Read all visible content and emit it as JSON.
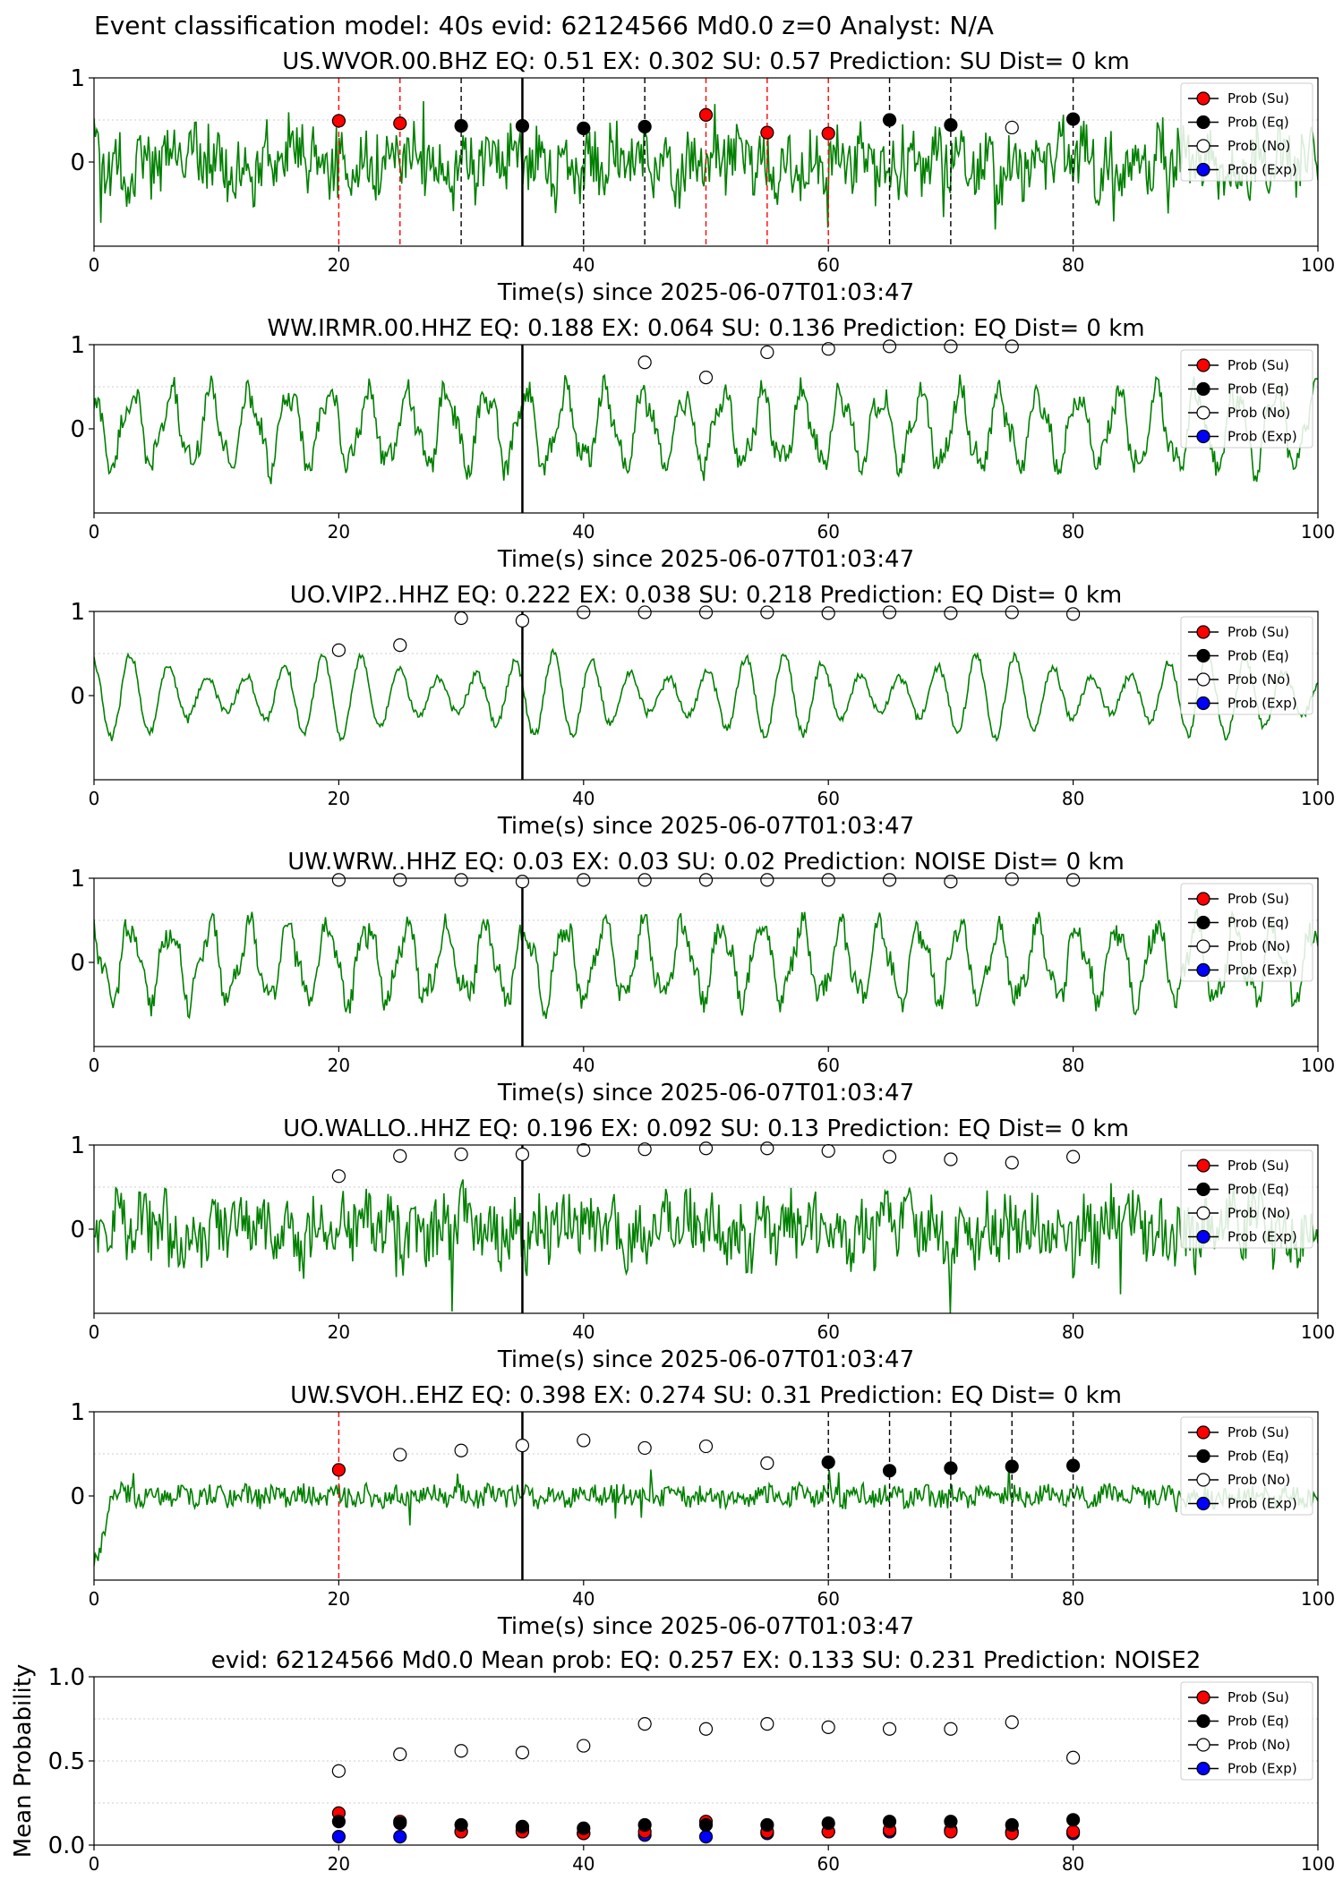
{
  "figure_title": "Event classification model: 40s evid: 62124566 Md0.0 z=0 Analyst: N/A",
  "legend_labels": [
    "Prob (Su)",
    "Prob (Eq)",
    "Prob (No)",
    "Prob (Exp)"
  ],
  "colors": {
    "waveform": "#008000",
    "su": "#ff0000",
    "eq": "#000000",
    "no": "#ffffff",
    "exp": "#0000ff",
    "marker_edge": "#000000"
  },
  "chart_data": [
    {
      "type": "line",
      "title": "US.WVOR.00.BHZ   EQ: 0.51  EX: 0.302  SU: 0.57   Prediction: SU    Dist= 0 km",
      "xlabel": "Time(s) since 2025-06-07T01:03:47",
      "xlim": [
        0,
        100
      ],
      "ylim": [
        -1,
        1
      ],
      "xticks": [
        "0",
        "20",
        "40",
        "60",
        "80",
        "100"
      ],
      "yticks": [
        "0",
        "1"
      ],
      "waveform_style": "noisy",
      "onset_time": 35,
      "dashed_lines": [
        {
          "x": 20,
          "color": "su"
        },
        {
          "x": 25,
          "color": "su"
        },
        {
          "x": 30,
          "color": "eq"
        },
        {
          "x": 40,
          "color": "eq"
        },
        {
          "x": 45,
          "color": "eq"
        },
        {
          "x": 50,
          "color": "su"
        },
        {
          "x": 55,
          "color": "su"
        },
        {
          "x": 60,
          "color": "su"
        },
        {
          "x": 65,
          "color": "eq"
        },
        {
          "x": 70,
          "color": "eq"
        },
        {
          "x": 80,
          "color": "eq"
        }
      ],
      "points": [
        {
          "x": 20,
          "y": 0.49,
          "cls": "su"
        },
        {
          "x": 25,
          "y": 0.46,
          "cls": "su"
        },
        {
          "x": 30,
          "y": 0.43,
          "cls": "eq"
        },
        {
          "x": 35,
          "y": 0.43,
          "cls": "eq"
        },
        {
          "x": 40,
          "y": 0.4,
          "cls": "eq"
        },
        {
          "x": 45,
          "y": 0.42,
          "cls": "eq"
        },
        {
          "x": 50,
          "y": 0.56,
          "cls": "su"
        },
        {
          "x": 55,
          "y": 0.35,
          "cls": "su"
        },
        {
          "x": 60,
          "y": 0.34,
          "cls": "su"
        },
        {
          "x": 65,
          "y": 0.5,
          "cls": "eq"
        },
        {
          "x": 70,
          "y": 0.44,
          "cls": "eq"
        },
        {
          "x": 75,
          "y": 0.41,
          "cls": "no"
        },
        {
          "x": 80,
          "y": 0.51,
          "cls": "eq"
        }
      ]
    },
    {
      "type": "line",
      "title": "WW.IRMR.00.HHZ   EQ: 0.188  EX: 0.064  SU: 0.136   Prediction: EQ    Dist= 0 km",
      "xlabel": "Time(s) since 2025-06-07T01:03:47",
      "xlim": [
        0,
        100
      ],
      "ylim": [
        -1,
        1
      ],
      "xticks": [
        "0",
        "20",
        "40",
        "60",
        "80",
        "100"
      ],
      "yticks": [
        "0",
        "1"
      ],
      "waveform_style": "wave",
      "onset_time": 35,
      "dashed_lines": [],
      "points": [
        {
          "x": 45,
          "y": 0.79,
          "cls": "no"
        },
        {
          "x": 50,
          "y": 0.61,
          "cls": "no"
        },
        {
          "x": 55,
          "y": 0.91,
          "cls": "no"
        },
        {
          "x": 60,
          "y": 0.95,
          "cls": "no"
        },
        {
          "x": 65,
          "y": 0.98,
          "cls": "no"
        },
        {
          "x": 70,
          "y": 0.98,
          "cls": "no"
        },
        {
          "x": 75,
          "y": 0.98,
          "cls": "no"
        }
      ]
    },
    {
      "type": "line",
      "title": "UO.VIP2..HHZ   EQ: 0.222  EX: 0.038  SU: 0.218   Prediction: EQ    Dist= 0 km",
      "xlabel": "Time(s) since 2025-06-07T01:03:47",
      "xlim": [
        0,
        100
      ],
      "ylim": [
        -1,
        1
      ],
      "xticks": [
        "0",
        "20",
        "40",
        "60",
        "80",
        "100"
      ],
      "yticks": [
        "0",
        "1"
      ],
      "waveform_style": "smooth",
      "onset_time": 35,
      "dashed_lines": [],
      "points": [
        {
          "x": 20,
          "y": 0.54,
          "cls": "no"
        },
        {
          "x": 25,
          "y": 0.6,
          "cls": "no"
        },
        {
          "x": 30,
          "y": 0.92,
          "cls": "no"
        },
        {
          "x": 35,
          "y": 0.89,
          "cls": "no"
        },
        {
          "x": 40,
          "y": 0.99,
          "cls": "no"
        },
        {
          "x": 45,
          "y": 0.99,
          "cls": "no"
        },
        {
          "x": 50,
          "y": 0.99,
          "cls": "no"
        },
        {
          "x": 55,
          "y": 0.99,
          "cls": "no"
        },
        {
          "x": 60,
          "y": 0.98,
          "cls": "no"
        },
        {
          "x": 65,
          "y": 0.99,
          "cls": "no"
        },
        {
          "x": 70,
          "y": 0.98,
          "cls": "no"
        },
        {
          "x": 75,
          "y": 0.99,
          "cls": "no"
        },
        {
          "x": 80,
          "y": 0.97,
          "cls": "no"
        }
      ]
    },
    {
      "type": "line",
      "title": "UW.WRW..HHZ   EQ: 0.03  EX: 0.03  SU: 0.02   Prediction: NOISE    Dist= 0 km",
      "xlabel": "Time(s) since 2025-06-07T01:03:47",
      "xlim": [
        0,
        100
      ],
      "ylim": [
        -1,
        1
      ],
      "xticks": [
        "0",
        "20",
        "40",
        "60",
        "80",
        "100"
      ],
      "yticks": [
        "0",
        "1"
      ],
      "waveform_style": "wave",
      "onset_time": 35,
      "dashed_lines": [],
      "points": [
        {
          "x": 20,
          "y": 0.98,
          "cls": "no"
        },
        {
          "x": 25,
          "y": 0.98,
          "cls": "no"
        },
        {
          "x": 30,
          "y": 0.98,
          "cls": "no"
        },
        {
          "x": 35,
          "y": 0.96,
          "cls": "no"
        },
        {
          "x": 40,
          "y": 0.98,
          "cls": "no"
        },
        {
          "x": 45,
          "y": 0.98,
          "cls": "no"
        },
        {
          "x": 50,
          "y": 0.98,
          "cls": "no"
        },
        {
          "x": 55,
          "y": 0.98,
          "cls": "no"
        },
        {
          "x": 60,
          "y": 0.98,
          "cls": "no"
        },
        {
          "x": 65,
          "y": 0.98,
          "cls": "no"
        },
        {
          "x": 70,
          "y": 0.96,
          "cls": "no"
        },
        {
          "x": 75,
          "y": 0.99,
          "cls": "no"
        },
        {
          "x": 80,
          "y": 0.98,
          "cls": "no"
        }
      ]
    },
    {
      "type": "line",
      "title": "UO.WALLO..HHZ   EQ: 0.196  EX: 0.092  SU: 0.13   Prediction: EQ    Dist= 0 km",
      "xlabel": "Time(s) since 2025-06-07T01:03:47",
      "xlim": [
        0,
        100
      ],
      "ylim": [
        -1,
        1
      ],
      "xticks": [
        "0",
        "20",
        "40",
        "60",
        "80",
        "100"
      ],
      "yticks": [
        "0",
        "1"
      ],
      "waveform_style": "noisy",
      "onset_time": 35,
      "dashed_lines": [],
      "points": [
        {
          "x": 20,
          "y": 0.63,
          "cls": "no"
        },
        {
          "x": 25,
          "y": 0.87,
          "cls": "no"
        },
        {
          "x": 30,
          "y": 0.89,
          "cls": "no"
        },
        {
          "x": 35,
          "y": 0.89,
          "cls": "no"
        },
        {
          "x": 40,
          "y": 0.94,
          "cls": "no"
        },
        {
          "x": 45,
          "y": 0.95,
          "cls": "no"
        },
        {
          "x": 50,
          "y": 0.96,
          "cls": "no"
        },
        {
          "x": 55,
          "y": 0.96,
          "cls": "no"
        },
        {
          "x": 60,
          "y": 0.93,
          "cls": "no"
        },
        {
          "x": 65,
          "y": 0.86,
          "cls": "no"
        },
        {
          "x": 70,
          "y": 0.83,
          "cls": "no"
        },
        {
          "x": 75,
          "y": 0.79,
          "cls": "no"
        },
        {
          "x": 80,
          "y": 0.86,
          "cls": "no"
        }
      ]
    },
    {
      "type": "line",
      "title": "UW.SVOH..EHZ   EQ: 0.398  EX: 0.274  SU: 0.31   Prediction: EQ    Dist= 0 km",
      "xlabel": "Time(s) since 2025-06-07T01:03:47",
      "xlim": [
        0,
        100
      ],
      "ylim": [
        -1,
        1
      ],
      "xticks": [
        "0",
        "20",
        "40",
        "60",
        "80",
        "100"
      ],
      "yticks": [
        "0",
        "1"
      ],
      "waveform_style": "quiet",
      "onset_time": 35,
      "dashed_lines": [
        {
          "x": 20,
          "color": "su"
        },
        {
          "x": 60,
          "color": "eq"
        },
        {
          "x": 65,
          "color": "eq"
        },
        {
          "x": 70,
          "color": "eq"
        },
        {
          "x": 75,
          "color": "eq"
        },
        {
          "x": 80,
          "color": "eq"
        }
      ],
      "points": [
        {
          "x": 20,
          "y": 0.31,
          "cls": "su"
        },
        {
          "x": 25,
          "y": 0.49,
          "cls": "no"
        },
        {
          "x": 30,
          "y": 0.54,
          "cls": "no"
        },
        {
          "x": 35,
          "y": 0.6,
          "cls": "no"
        },
        {
          "x": 40,
          "y": 0.66,
          "cls": "no"
        },
        {
          "x": 45,
          "y": 0.57,
          "cls": "no"
        },
        {
          "x": 50,
          "y": 0.59,
          "cls": "no"
        },
        {
          "x": 55,
          "y": 0.39,
          "cls": "no"
        },
        {
          "x": 60,
          "y": 0.4,
          "cls": "eq"
        },
        {
          "x": 65,
          "y": 0.3,
          "cls": "eq"
        },
        {
          "x": 70,
          "y": 0.33,
          "cls": "eq"
        },
        {
          "x": 75,
          "y": 0.35,
          "cls": "eq"
        },
        {
          "x": 80,
          "y": 0.36,
          "cls": "eq"
        }
      ]
    },
    {
      "type": "scatter",
      "title": "evid: 62124566  Md0.0   Mean prob:   EQ: 0.257  EX: 0.133  SU: 0.231   Prediction: NOISE2",
      "xlabel": "",
      "ylabel": "Mean Probability",
      "xlim": [
        0,
        100
      ],
      "ylim": [
        0,
        1
      ],
      "xticks": [
        "0",
        "20",
        "40",
        "60",
        "80",
        "100"
      ],
      "yticks": [
        "0.0",
        "0.5",
        "1.0"
      ],
      "x": [
        20,
        25,
        30,
        35,
        40,
        45,
        50,
        55,
        60,
        65,
        70,
        75,
        80
      ],
      "series": [
        {
          "cls": "no",
          "values": [
            0.44,
            0.54,
            0.56,
            0.55,
            0.59,
            0.72,
            0.69,
            0.72,
            0.7,
            0.69,
            0.69,
            0.73,
            0.52
          ]
        },
        {
          "cls": "eq",
          "values": [
            0.14,
            0.13,
            0.12,
            0.11,
            0.1,
            0.12,
            0.12,
            0.12,
            0.13,
            0.14,
            0.14,
            0.12,
            0.15
          ]
        },
        {
          "cls": "su",
          "values": [
            0.19,
            0.14,
            0.08,
            0.08,
            0.07,
            0.08,
            0.14,
            0.08,
            0.08,
            0.09,
            0.08,
            0.07,
            0.08
          ]
        },
        {
          "cls": "exp",
          "values": [
            0.05,
            0.05,
            0.08,
            0.09,
            0.07,
            0.06,
            0.05,
            0.07,
            0.08,
            0.08,
            0.09,
            0.08,
            0.07
          ]
        }
      ]
    }
  ]
}
